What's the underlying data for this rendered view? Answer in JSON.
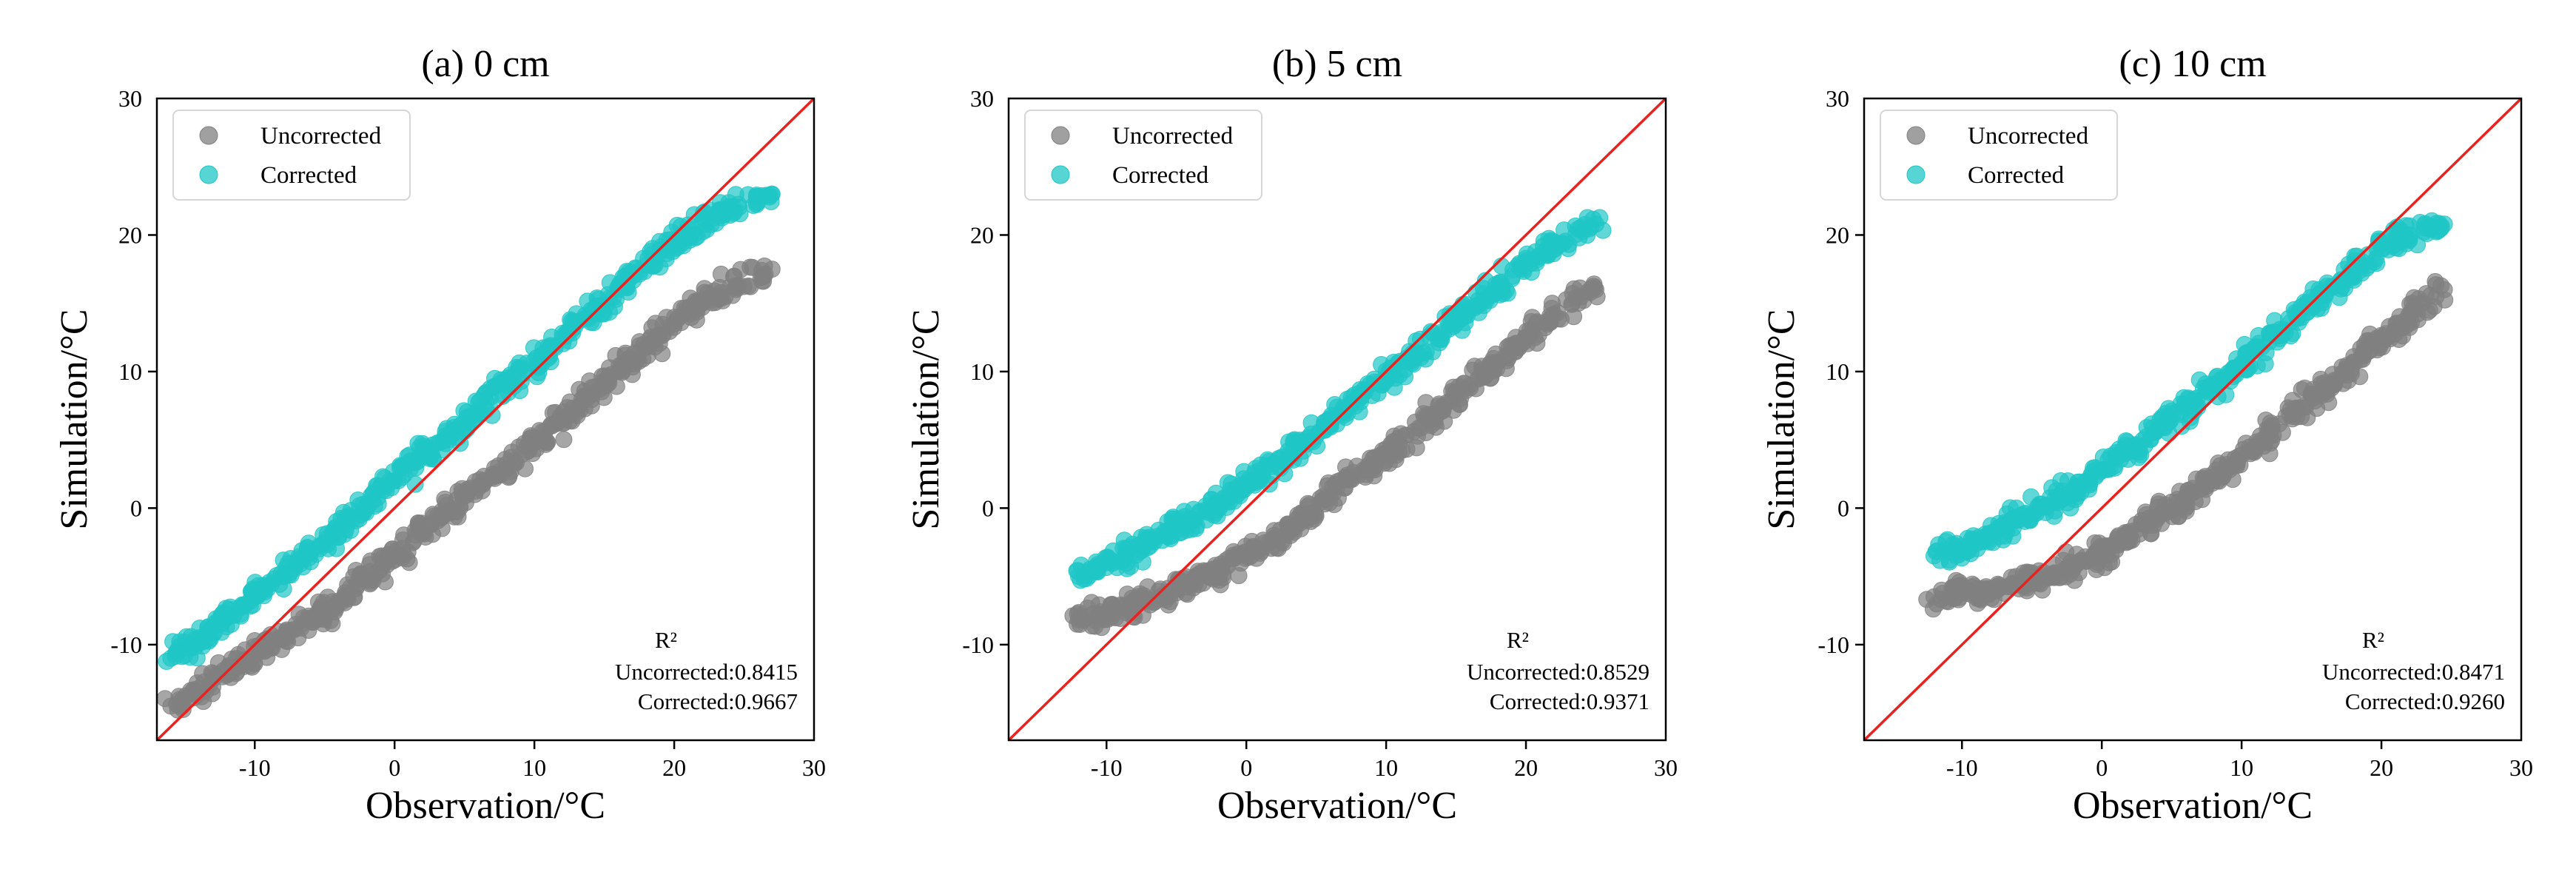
{
  "colors": {
    "uncorrected": "#808080",
    "corrected": "#1fc6c6",
    "reference_line": "#e8231f"
  },
  "chart_data": [
    {
      "type": "scatter",
      "title": "(a) 0 cm",
      "xlabel": "Observation/°C",
      "ylabel": "Simulation/°C",
      "xlim": [
        -17,
        30
      ],
      "ylim": [
        -17,
        30
      ],
      "xticks": [
        -10,
        0,
        10,
        20,
        30
      ],
      "yticks": [
        -10,
        0,
        10,
        20,
        30
      ],
      "grid": false,
      "legend_position": "top-left",
      "reference_line": "1:1",
      "annotation": {
        "header": "R²",
        "lines": [
          "Uncorrected:0.8415",
          "Corrected:0.9667"
        ]
      },
      "series": [
        {
          "name": "Uncorrected",
          "x": [
            -16,
            -14,
            -12,
            -10,
            -8,
            -6,
            -4,
            -2,
            0,
            2,
            4,
            6,
            8,
            10,
            12,
            14,
            16,
            18,
            20,
            22,
            24,
            27
          ],
          "y": [
            -14.5,
            -13.2,
            -12,
            -10.8,
            -9.5,
            -8.2,
            -6.8,
            -5.2,
            -3.5,
            -1.8,
            -0.2,
            1.5,
            3.2,
            4.8,
            6.5,
            8.3,
            10,
            11.8,
            13.5,
            15,
            16.2,
            17.5
          ]
        },
        {
          "name": "Corrected",
          "x": [
            -16,
            -14,
            -12,
            -10,
            -8,
            -6,
            -4,
            -2,
            0,
            2,
            4,
            6,
            8,
            10,
            12,
            14,
            16,
            18,
            20,
            22,
            24,
            27
          ],
          "y": [
            -11,
            -9.5,
            -8,
            -6.5,
            -5,
            -3.2,
            -1.5,
            0.2,
            2,
            3.8,
            5.5,
            7.2,
            9,
            10.8,
            12.5,
            14.2,
            16,
            17.8,
            19.5,
            21,
            22,
            23
          ]
        }
      ]
    },
    {
      "type": "scatter",
      "title": "(b) 5 cm",
      "xlabel": "Observation/°C",
      "ylabel": "Simulation/°C",
      "xlim": [
        -17,
        30
      ],
      "ylim": [
        -17,
        30
      ],
      "xticks": [
        -10,
        0,
        10,
        20,
        30
      ],
      "yticks": [
        -10,
        0,
        10,
        20,
        30
      ],
      "grid": false,
      "legend_position": "top-left",
      "reference_line": "1:1",
      "annotation": {
        "header": "R²",
        "lines": [
          "Uncorrected:0.8529",
          "Corrected:0.9371"
        ]
      },
      "series": [
        {
          "name": "Uncorrected",
          "x": [
            -12,
            -10,
            -8,
            -6,
            -4,
            -2,
            0,
            2,
            4,
            6,
            8,
            10,
            12,
            14,
            16,
            18,
            20,
            22,
            25
          ],
          "y": [
            -8.2,
            -7.6,
            -7,
            -6.4,
            -5.6,
            -4.6,
            -3.5,
            -2.2,
            -0.8,
            0.8,
            2.4,
            4,
            5.6,
            7.3,
            9,
            10.7,
            12.5,
            14.2,
            16
          ]
        },
        {
          "name": "Corrected",
          "x": [
            -12,
            -10,
            -8,
            -6,
            -4,
            -2,
            0,
            2,
            4,
            6,
            8,
            10,
            12,
            14,
            16,
            18,
            20,
            22,
            25
          ],
          "y": [
            -5,
            -4,
            -3,
            -2,
            -0.8,
            0.4,
            1.8,
            3.3,
            4.8,
            6.4,
            8,
            9.6,
            11.2,
            12.9,
            14.6,
            16.3,
            18,
            19.5,
            20.8
          ]
        }
      ]
    },
    {
      "type": "scatter",
      "title": "(c) 10 cm",
      "xlabel": "Observation/°C",
      "ylabel": "Simulation/°C",
      "xlim": [
        -17,
        30
      ],
      "ylim": [
        -17,
        30
      ],
      "xticks": [
        -10,
        0,
        10,
        20,
        30
      ],
      "yticks": [
        -10,
        0,
        10,
        20,
        30
      ],
      "grid": false,
      "legend_position": "top-left",
      "reference_line": "1:1",
      "annotation": {
        "header": "R²",
        "lines": [
          "Uncorrected:0.8471",
          "Corrected:0.9260"
        ]
      },
      "series": [
        {
          "name": "Uncorrected",
          "x": [
            -12,
            -10,
            -8,
            -6,
            -4,
            -2,
            0,
            2,
            4,
            6,
            8,
            10,
            12,
            14,
            16,
            18,
            20,
            22,
            24.5
          ],
          "y": [
            -6.5,
            -6.2,
            -5.9,
            -5.5,
            -5,
            -4.2,
            -3.2,
            -2,
            -0.7,
            0.8,
            2.3,
            3.9,
            5.5,
            7.2,
            8.9,
            10.7,
            12.5,
            14.2,
            16
          ]
        },
        {
          "name": "Corrected",
          "x": [
            -12,
            -10,
            -8,
            -6,
            -4,
            -2,
            0,
            2,
            4,
            6,
            8,
            10,
            12,
            14,
            16,
            18,
            20,
            22,
            24.5
          ],
          "y": [
            -3.5,
            -2.8,
            -1.9,
            -0.9,
            0.2,
            1.4,
            2.8,
            4.3,
            5.8,
            7.4,
            9,
            10.6,
            12.2,
            13.9,
            15.6,
            17.3,
            19,
            20,
            20.8
          ]
        }
      ]
    }
  ]
}
